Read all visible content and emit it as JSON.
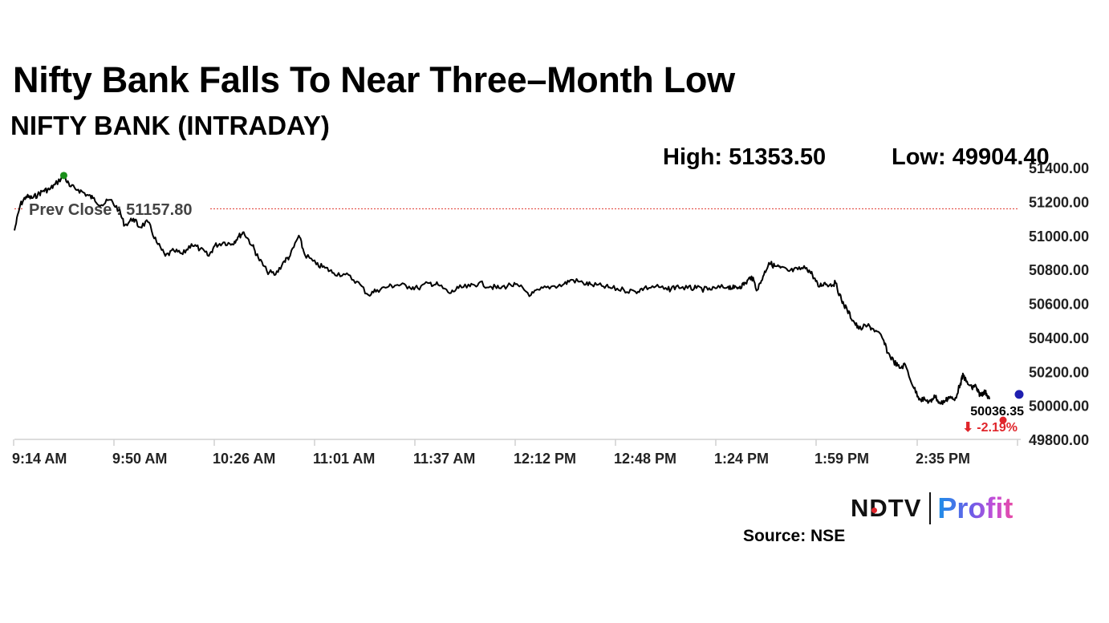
{
  "headline": "Nifty Bank Falls To Near Three–Month Low",
  "chart_data": {
    "type": "line",
    "title": "NIFTY BANK (INTRADAY)",
    "high_label": "High: 51353.50",
    "low_label": "Low: 49904.40",
    "prev_close": 51157.8,
    "prev_close_label": "Prev Close : 51157.80",
    "last_value_label": "50036.35",
    "change_label": "⬇ -2.19%",
    "y_ticks": [
      "51400.00",
      "51200.00",
      "51000.00",
      "50800.00",
      "50600.00",
      "50400.00",
      "50200.00",
      "50000.00",
      "49800.00"
    ],
    "x_ticks": [
      "9:14 AM",
      "9:50 AM",
      "10:26 AM",
      "11:01 AM",
      "11:37 AM",
      "12:12 PM",
      "12:48 PM",
      "1:24 PM",
      "1:59 PM",
      "2:35 PM"
    ],
    "ylim": [
      49800,
      51400
    ],
    "grid": false,
    "series": [
      {
        "x": [
          "9:14 AM",
          "9:16 AM",
          "9:18 AM",
          "9:20 AM",
          "9:22 AM",
          "9:24 AM",
          "9:26 AM",
          "9:28 AM",
          "9:31 AM",
          "9:33 AM",
          "9:36 AM",
          "9:39 AM",
          "9:41 AM",
          "9:44 AM",
          "9:47 AM",
          "9:50 AM",
          "9:52 AM",
          "9:55 AM",
          "9:57 AM",
          "10:00 AM",
          "10:03 AM",
          "10:06 AM",
          "10:09 AM",
          "10:12 AM",
          "10:15 AM",
          "10:18 AM",
          "10:21 AM",
          "10:23 AM",
          "10:26 AM",
          "10:29 AM",
          "10:31 AM",
          "10:33 AM",
          "10:36 AM",
          "10:38 AM",
          "10:41 AM",
          "10:44 AM",
          "10:47 AM",
          "10:49 AM",
          "10:52 AM",
          "10:54 AM",
          "10:58 AM",
          "11:01 AM",
          "11:04 AM",
          "11:08 AM",
          "11:12 AM",
          "11:16 AM",
          "11:19 AM",
          "11:23 AM",
          "11:26 AM",
          "11:30 AM",
          "11:33 AM",
          "11:37 AM",
          "11:40 AM",
          "11:44 AM",
          "11:47 AM",
          "11:51 AM",
          "11:54 AM",
          "11:58 AM",
          "12:01 PM",
          "12:05 PM",
          "12:08 PM",
          "12:12 PM",
          "12:15 PM",
          "12:19 PM",
          "12:23 PM",
          "12:26 PM",
          "12:30 PM",
          "12:33 PM",
          "12:37 PM",
          "12:40 PM",
          "12:44 PM",
          "12:48 PM",
          "12:51 PM",
          "12:55 PM",
          "12:59 PM",
          "1:02 PM",
          "1:06 PM",
          "1:09 PM",
          "1:13 PM",
          "1:16 PM",
          "1:20 PM",
          "1:22 PM",
          "1:24 PM",
          "1:26 PM",
          "1:28 PM",
          "1:30 PM",
          "1:32 PM",
          "1:34 PM",
          "1:36 PM",
          "1:38 PM",
          "1:41 PM",
          "1:44 PM",
          "1:47 PM",
          "1:49 PM",
          "1:51 PM",
          "1:53 PM",
          "1:55 PM",
          "1:57 PM",
          "1:59 PM",
          "2:01 PM",
          "2:03 PM",
          "2:05 PM",
          "2:08 PM",
          "2:10 PM",
          "2:13 PM",
          "2:15 PM",
          "2:17 PM",
          "2:19 PM",
          "2:21 PM",
          "2:24 PM",
          "2:26 PM",
          "2:28 PM",
          "2:30 PM",
          "2:31 PM",
          "2:33 PM",
          "2:35 PM",
          "2:36 PM",
          "2:38 PM",
          "2:40 PM",
          "2:41 PM",
          "2:42 PM",
          "2:44 PM",
          "2:45 PM",
          "2:46 PM",
          "2:47 PM",
          "2:48 PM",
          "2:49 PM",
          "2:50 PM"
        ],
        "values": [
          51030,
          51180,
          51230,
          51220,
          51240,
          51265,
          51270,
          51300,
          51353.5,
          51290,
          51270,
          51240,
          51220,
          51180,
          51210,
          51150,
          51060,
          51100,
          51050,
          51080,
          50960,
          50880,
          50910,
          50890,
          50950,
          50920,
          50880,
          50940,
          50960,
          50950,
          50990,
          51020,
          50940,
          50870,
          50790,
          50770,
          50850,
          50880,
          51000,
          50890,
          50830,
          50810,
          50780,
          50770,
          50730,
          50650,
          50680,
          50700,
          50710,
          50700,
          50690,
          50720,
          50710,
          50660,
          50690,
          50700,
          50720,
          50700,
          50690,
          50710,
          50700,
          50650,
          50680,
          50700,
          50710,
          50740,
          50720,
          50710,
          50700,
          50690,
          50680,
          50670,
          50690,
          50700,
          50680,
          50700,
          50690,
          50690,
          50680,
          50690,
          50700,
          50690,
          50700,
          50720,
          50760,
          50680,
          50760,
          50840,
          50820,
          50810,
          50790,
          50800,
          50810,
          50770,
          50700,
          50720,
          50710,
          50720,
          50620,
          50560,
          50500,
          50450,
          50470,
          50450,
          50400,
          50310,
          50260,
          50220,
          50240,
          50100,
          50040,
          50030,
          50020,
          50060,
          50010,
          50030,
          50050,
          50030,
          50130,
          50180,
          50140,
          50100,
          50120,
          50080,
          50060,
          50080,
          50070,
          50036.35
        ]
      }
    ]
  }
}
